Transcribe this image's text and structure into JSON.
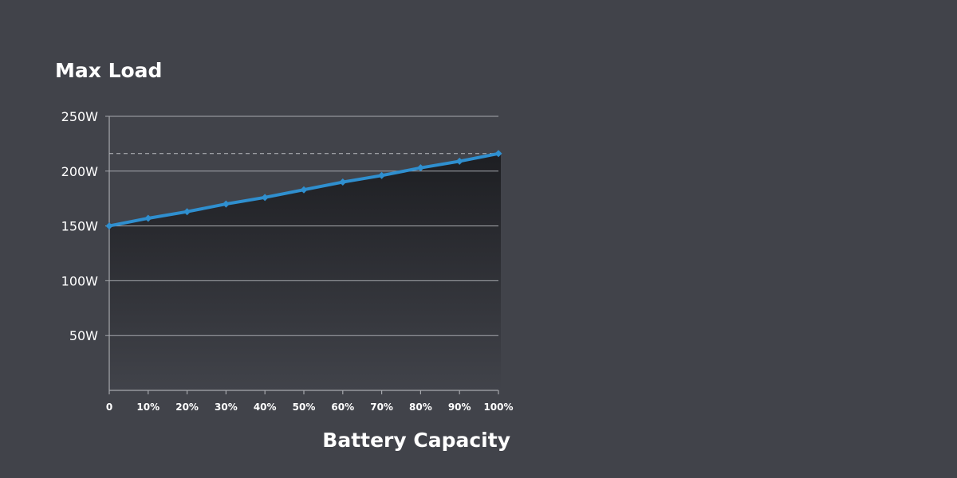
{
  "chart_data": {
    "type": "area",
    "title": "Max Load",
    "xlabel": "Battery Capacity",
    "ylabel": "",
    "x": [
      0,
      10,
      20,
      30,
      40,
      50,
      60,
      70,
      80,
      90,
      100
    ],
    "x_tick_labels": [
      "0",
      "10%",
      "20%",
      "30%",
      "40%",
      "50%",
      "60%",
      "70%",
      "80%",
      "90%",
      "100%"
    ],
    "y_ticks": [
      50,
      100,
      150,
      200,
      250
    ],
    "y_tick_labels": [
      "50W",
      "100W",
      "150W",
      "200W",
      "250W"
    ],
    "ylim": [
      0,
      250
    ],
    "xlim": [
      0,
      100
    ],
    "series": [
      {
        "values": [
          150,
          157,
          163,
          170,
          176,
          183,
          190,
          196,
          203,
          209,
          216
        ],
        "color": "#2f8fcf",
        "marker": "diamond"
      }
    ],
    "reference_line": {
      "value": 216,
      "style": "dashed",
      "color": "#b9bbc0"
    },
    "grid": "horizontal",
    "colors": {
      "background": "#41434a",
      "gridline": "#a6a8ad",
      "axis": "#a6a8ad",
      "fill_top": "#1d1e22",
      "fill_bottom": "#41434a",
      "text": "#ffffff"
    }
  }
}
